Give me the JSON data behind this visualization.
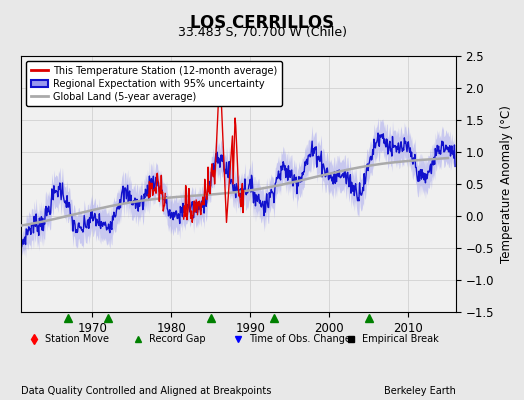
{
  "title": "LOS CERRILLOS",
  "subtitle": "33.483 S, 70.700 W (Chile)",
  "ylabel": "Temperature Anomaly (°C)",
  "xlabel_bottom": "Data Quality Controlled and Aligned at Breakpoints",
  "xlabel_right": "Berkeley Earth",
  "ylim": [
    -1.5,
    2.5
  ],
  "xlim": [
    1961,
    2016
  ],
  "yticks": [
    -1.5,
    -1.0,
    -0.5,
    0.0,
    0.5,
    1.0,
    1.5,
    2.0,
    2.5
  ],
  "xticks": [
    1970,
    1980,
    1990,
    2000,
    2010
  ],
  "background_color": "#e8e8e8",
  "plot_bg_color": "#f0f0f0",
  "legend_entries": [
    "This Temperature Station (12-month average)",
    "Regional Expectation with 95% uncertainty",
    "Global Land (5-year average)"
  ],
  "station_move_years": [],
  "record_gap_years": [
    1967,
    1972,
    1985,
    1993,
    2005
  ],
  "obs_change_years": [],
  "empirical_break_years": [],
  "red_line_color": "#dd0000",
  "blue_line_color": "#1111cc",
  "blue_band_color": "#9999ee",
  "gray_line_color": "#aaaaaa",
  "grid_color": "#cccccc"
}
